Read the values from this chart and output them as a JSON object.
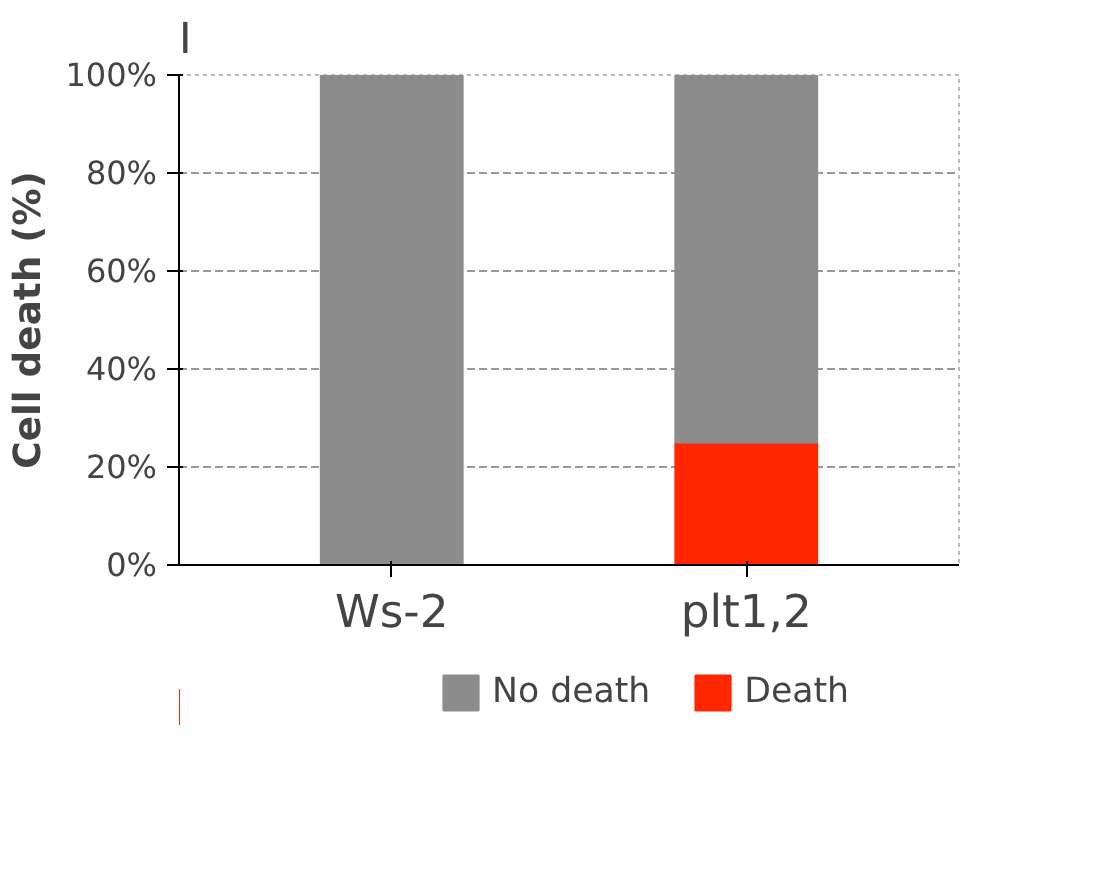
{
  "chart_data": {
    "type": "bar",
    "stacked": true,
    "ylabel": "Cell death (%)",
    "annotations": [
      "I"
    ],
    "categories": [
      "Ws-2",
      "plt1,2"
    ],
    "series": [
      {
        "name": "Death",
        "color": "#ff2600",
        "values": [
          0,
          25
        ]
      },
      {
        "name": "No death",
        "color": "#8c8c8c",
        "values": [
          100,
          75
        ]
      }
    ],
    "ylim": [
      0,
      100
    ],
    "yticks": [
      {
        "value": 0,
        "label": "0%"
      },
      {
        "value": 20,
        "label": "20%"
      },
      {
        "value": 40,
        "label": "40%"
      },
      {
        "value": 60,
        "label": "60%"
      },
      {
        "value": 80,
        "label": "80%"
      },
      {
        "value": 100,
        "label": "100%"
      }
    ],
    "grid": "y",
    "legend": "bottom"
  }
}
